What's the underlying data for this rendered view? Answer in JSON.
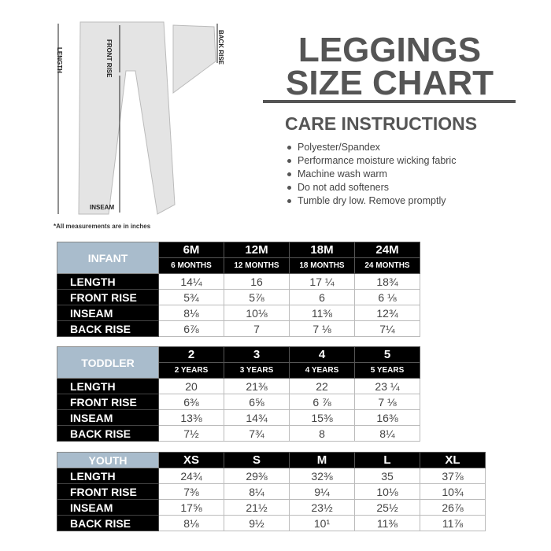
{
  "title": {
    "line1": "LEGGINGS",
    "line2": "SIZE CHART"
  },
  "care": {
    "heading": "CARE INSTRUCTIONS",
    "items": [
      "Polyester/Spandex",
      "Performance moisture wicking fabric",
      "Machine wash warm",
      "Do not add softeners",
      "Tumble dry low. Remove promptly"
    ]
  },
  "diagram": {
    "length": "LENGTH",
    "front_rise": "FRONT RISE",
    "back_rise": "BACK RISE",
    "inseam": "INSEAM",
    "note": "*All measurements are in inches"
  },
  "infant": {
    "group": "INFANT",
    "sizes": [
      "6M",
      "12M",
      "18M",
      "24M"
    ],
    "subs": [
      "6 MONTHS",
      "12 MONTHS",
      "18 MONTHS",
      "24 MONTHS"
    ],
    "rows": [
      {
        "label": "LENGTH",
        "values": [
          "14¼",
          "16",
          "17 ¼",
          "18¾"
        ]
      },
      {
        "label": "FRONT RISE",
        "values": [
          "5¾",
          "5⅞",
          "6",
          "6 ⅛"
        ]
      },
      {
        "label": "INSEAM",
        "values": [
          "8⅛",
          "10⅛",
          "11⅜",
          "12¾"
        ]
      },
      {
        "label": "BACK RISE",
        "values": [
          "6⅞",
          "7",
          "7 ⅛",
          "7¼"
        ]
      }
    ]
  },
  "toddler": {
    "group": "TODDLER",
    "sizes": [
      "2",
      "3",
      "4",
      "5"
    ],
    "subs": [
      "2 YEARS",
      "3 YEARS",
      "4 YEARS",
      "5 YEARS"
    ],
    "rows": [
      {
        "label": "LENGTH",
        "values": [
          "20",
          "21⅜",
          "22",
          "23 ¼"
        ]
      },
      {
        "label": "FRONT RISE",
        "values": [
          "6⅜",
          "6⅝",
          "6 ⅞",
          "7 ⅛"
        ]
      },
      {
        "label": "INSEAM",
        "values": [
          "13⅜",
          "14¾",
          "15⅜",
          "16⅜"
        ]
      },
      {
        "label": "BACK RISE",
        "values": [
          "7½",
          "7¾",
          "8",
          "8¼"
        ]
      }
    ]
  },
  "youth": {
    "group": "YOUTH",
    "sizes": [
      "XS",
      "S",
      "M",
      "L",
      "XL"
    ],
    "rows": [
      {
        "label": "LENGTH",
        "values": [
          "24¾",
          "29⅜",
          "32⅜",
          "35",
          "37⅞"
        ]
      },
      {
        "label": "FRONT RISE",
        "values": [
          "7⅜",
          "8¼",
          "9¼",
          "10⅛",
          "10¾"
        ]
      },
      {
        "label": "INSEAM",
        "values": [
          "17⅝",
          "21½",
          "23½",
          "25½",
          "26⅞"
        ]
      },
      {
        "label": "BACK RISE",
        "values": [
          "8⅛",
          "9½",
          "10¹",
          "11⅜",
          "11⅞"
        ]
      }
    ]
  }
}
